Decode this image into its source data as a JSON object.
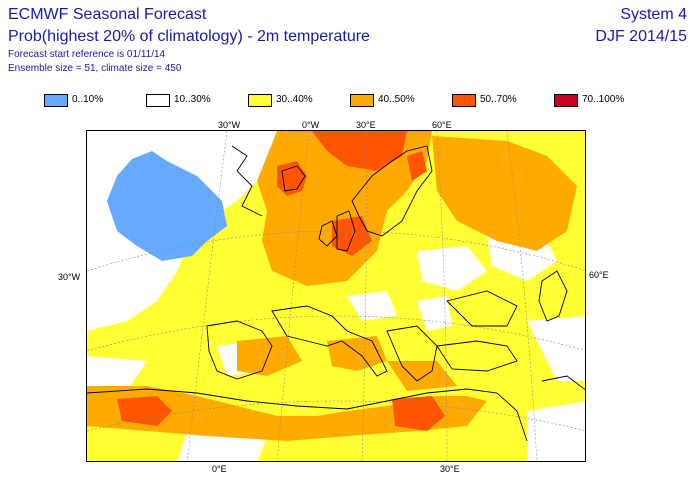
{
  "header": {
    "title": "ECMWF Seasonal Forecast",
    "subtitle": "Prob(highest 20% of climatology) - 2m temperature",
    "forecast_ref": "Forecast start reference is 01/11/14",
    "ensemble": "Ensemble size = 51, climate size = 450",
    "system": "System 4",
    "season": "DJF 2014/15"
  },
  "legend": [
    {
      "label": "0..10%",
      "color": "#66aaff"
    },
    {
      "label": "10..30%",
      "color": "#ffffff"
    },
    {
      "label": "30..40%",
      "color": "#ffff33"
    },
    {
      "label": "40..50%",
      "color": "#ffaa00"
    },
    {
      "label": "50..70%",
      "color": "#ff5500"
    },
    {
      "label": "70..100%",
      "color": "#cc0022"
    }
  ],
  "coords": {
    "top_30w": "30°W",
    "top_0w": "0°W",
    "top_30e": "30°E",
    "top_60e": "60°E",
    "left_30w": "30°W",
    "right_60e": "60°E",
    "bottom_0e": "0°E",
    "bottom_30e": "30°E"
  }
}
